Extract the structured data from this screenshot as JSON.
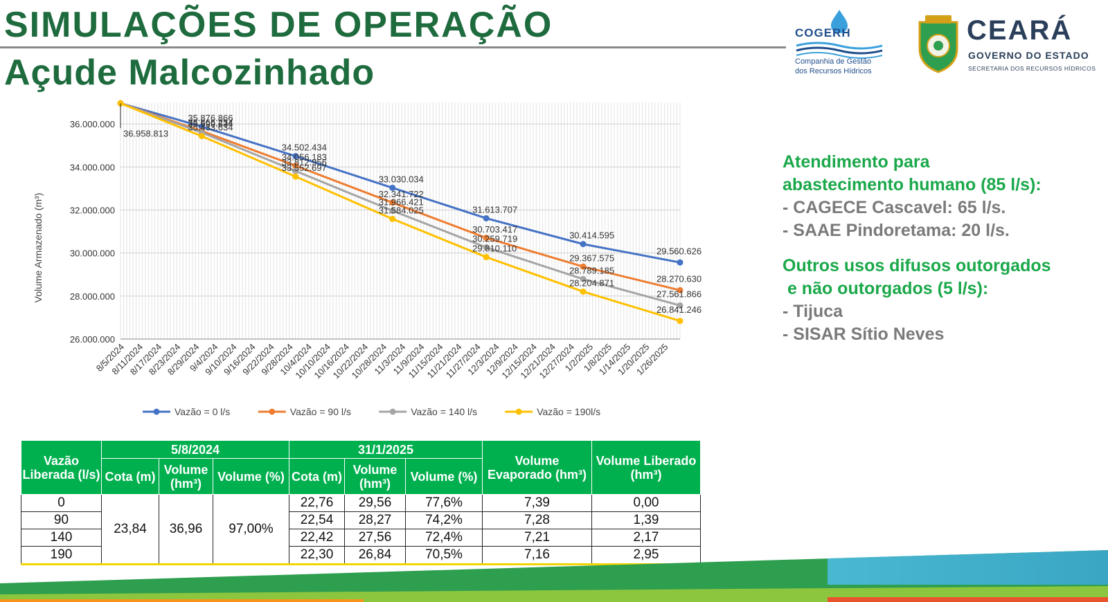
{
  "header": {
    "title": "SIMULAÇÕES DE OPERAÇÃO",
    "subtitle": "Açude Malcozinhado"
  },
  "logos": {
    "cogerh": {
      "name": "COGERH",
      "line1": "Companhia de Gestão",
      "line2": "dos Recursos Hídricos"
    },
    "ceara": {
      "name": "CEARÁ",
      "gov": "GOVERNO DO ESTADO",
      "sec": "SECRETARIA DOS RECURSOS HÍDRICOS"
    }
  },
  "colors": {
    "title": "#1e6b3e",
    "table_header": "#00b04f",
    "info_heading": "#1aa84a",
    "info_text": "#7a7a7a"
  },
  "chart_data": {
    "type": "line",
    "ylabel": "Volume Armazenado (m³)",
    "ylim": [
      26000000,
      37000000
    ],
    "y_ticks": [
      "26.000.000",
      "28.000.000",
      "30.000.000",
      "32.000.000",
      "34.000.000",
      "36.000.000"
    ],
    "x_range": [
      "2024-08-05",
      "2025-01-31"
    ],
    "x_tick_labels": [
      "8/5/2024",
      "8/11/2024",
      "8/17/2024",
      "8/23/2024",
      "8/29/2024",
      "9/4/2024",
      "9/10/2024",
      "9/16/2024",
      "9/22/2024",
      "9/28/2024",
      "10/4/2024",
      "10/10/2024",
      "10/16/2024",
      "10/22/2024",
      "10/28/2024",
      "11/3/2024",
      "11/9/2024",
      "11/15/2024",
      "11/21/2024",
      "11/27/2024",
      "12/3/2024",
      "12/9/2024",
      "12/15/2024",
      "12/21/2024",
      "12/27/2024",
      "1/2/2025",
      "1/8/2025",
      "1/14/2025",
      "1/20/2025",
      "1/26/2025"
    ],
    "grid": true,
    "legend": "bottom",
    "series": [
      {
        "name": "Vazão = 0 l/s",
        "color": "#4472c4",
        "points": [
          [
            "2024-08-05",
            36958813
          ],
          [
            "2024-08-31",
            35876866
          ],
          [
            "2024-09-30",
            34502434
          ],
          [
            "2024-10-31",
            33030034
          ],
          [
            "2024-11-30",
            31613707
          ],
          [
            "2024-12-31",
            30414595
          ],
          [
            "2025-01-31",
            29560626
          ]
        ],
        "labels": [
          "",
          "35.876.866",
          "34.502.434",
          "33.030.034",
          "31.613.707",
          "30.414.595",
          "29.560.626"
        ]
      },
      {
        "name": "Vazão = 90 l/s",
        "color": "#ed7d31",
        "points": [
          [
            "2024-08-05",
            36958813
          ],
          [
            "2024-08-31",
            35666234
          ],
          [
            "2024-09-30",
            34056183
          ],
          [
            "2024-10-31",
            32341722
          ],
          [
            "2024-11-30",
            30703417
          ],
          [
            "2024-12-31",
            29367575
          ],
          [
            "2025-01-31",
            28270630
          ]
        ],
        "labels": [
          "",
          "35.666.234",
          "34.056.183",
          "32.341.722",
          "30.703.417",
          "29.367.575",
          "28.270.630"
        ]
      },
      {
        "name": "Vazão = 140 l/s",
        "color": "#a5a5a5",
        "points": [
          [
            "2024-08-05",
            36958813
          ],
          [
            "2024-08-31",
            35599634
          ],
          [
            "2024-09-30",
            33812956
          ],
          [
            "2024-10-31",
            31966421
          ],
          [
            "2024-11-30",
            30259719
          ],
          [
            "2024-12-31",
            28789185
          ],
          [
            "2025-01-31",
            27561866
          ]
        ],
        "labels": [
          "",
          "35.599.634",
          "33.812.956",
          "31.966.421",
          "30.259.719",
          "28.789.185",
          "27.561.866"
        ]
      },
      {
        "name": "Vazão = 190l/s",
        "color": "#ffc000",
        "points": [
          [
            "2024-08-05",
            36958813
          ],
          [
            "2024-08-31",
            35433634
          ],
          [
            "2024-09-30",
            33552697
          ],
          [
            "2024-10-31",
            31584025
          ],
          [
            "2024-11-30",
            29810110
          ],
          [
            "2024-12-31",
            28204871
          ],
          [
            "2025-01-31",
            26841246
          ]
        ],
        "labels": [
          "36.958.813",
          "35.433.634",
          "33.552.697",
          "31.584.025",
          "29.810.110",
          "28.204.871",
          "26.841.246"
        ]
      }
    ]
  },
  "info": {
    "heading1": "Atendimento para",
    "heading1b": "abastecimento humano (85 l/s):",
    "item1": "- CAGECE Cascavel: 65 l/s.",
    "item2": "- SAAE Pindoretama: 20 l/s.",
    "heading2": "Outros usos difusos outorgados",
    "heading2b": " e não outorgados (5 l/s):",
    "item3": "- Tijuca",
    "item4": "- SISAR Sítio Neves"
  },
  "table": {
    "h_vazao": "Vazão Liberada (l/s)",
    "h_date1": "5/8/2024",
    "h_date2": "31/1/2025",
    "h_cota": "Cota (m)",
    "h_volume": "Volume (hm³)",
    "h_volume_pct": "Volume (%)",
    "h_evap": "Volume Evaporado (hm³)",
    "h_liberado": "Volume Liberado (hm³)",
    "initial": {
      "cota": "23,84",
      "volume": "36,96",
      "pct": "97,00%"
    },
    "rows": [
      {
        "vazao": "0",
        "cota": "22,76",
        "volume": "29,56",
        "pct": "77,6%",
        "evap": "7,39",
        "liberado": "0,00"
      },
      {
        "vazao": "90",
        "cota": "22,54",
        "volume": "28,27",
        "pct": "74,2%",
        "evap": "7,28",
        "liberado": "1,39"
      },
      {
        "vazao": "140",
        "cota": "22,42",
        "volume": "27,56",
        "pct": "72,4%",
        "evap": "7,21",
        "liberado": "2,17"
      },
      {
        "vazao": "190",
        "cota": "22,30",
        "volume": "26,84",
        "pct": "70,5%",
        "evap": "7,16",
        "liberado": "2,95"
      }
    ]
  }
}
